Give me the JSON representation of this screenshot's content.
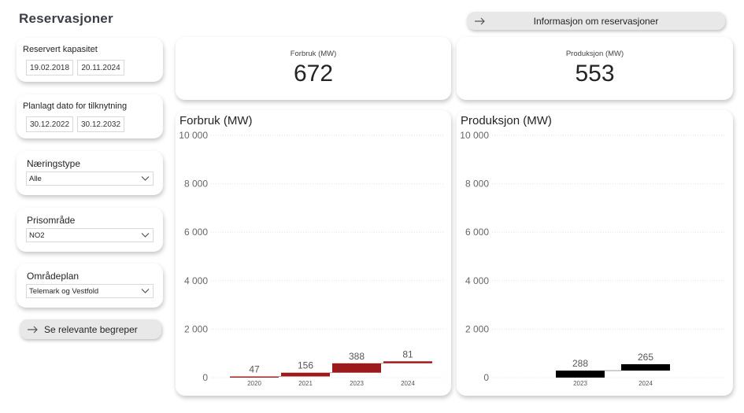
{
  "page": {
    "title": "Reservasjoner"
  },
  "buttons": {
    "info_label": "Informasjon om reservasjoner",
    "terms_label": "Se relevante begreper"
  },
  "filters": {
    "reserved_capacity": {
      "label": "Reservert kapasitet",
      "start": "19.02.2018",
      "end": "20.11.2024"
    },
    "planned_connection": {
      "label": "Planlagt dato for tilknytning",
      "start": "30.12.2022",
      "end": "30.12.2032"
    },
    "industry_type": {
      "label": "Næringstype",
      "value": "Alle"
    },
    "price_area": {
      "label": "Prisområde",
      "value": "NO2"
    },
    "area_plan": {
      "label": "Områdeplan",
      "value": "Telemark og Vestfold"
    }
  },
  "kpis": {
    "consumption": {
      "label": "Forbruk (MW)",
      "value": "672"
    },
    "production": {
      "label": "Produksjon (MW)",
      "value": "553"
    }
  },
  "colors": {
    "consumption_bar": "#9c1a1c",
    "production_bar": "#000000",
    "connector": "#a0a0a0"
  },
  "chart_data": [
    {
      "type": "bar",
      "subtype": "waterfall",
      "title": "Forbruk (MW)",
      "categories": [
        "2020",
        "2021",
        "2023",
        "2024"
      ],
      "values": [
        47,
        156,
        388,
        81
      ],
      "value_labels": [
        "47",
        "156",
        "388",
        "81"
      ],
      "ylim": [
        0,
        10000
      ],
      "yticks": [
        0,
        2000,
        4000,
        6000,
        8000,
        10000
      ],
      "ytick_labels": [
        "0",
        "2 000",
        "4 000",
        "6 000",
        "8 000",
        "10 000"
      ],
      "grid": true
    },
    {
      "type": "bar",
      "subtype": "waterfall",
      "title": "Produksjon (MW)",
      "categories": [
        "2023",
        "2024"
      ],
      "values": [
        288,
        265
      ],
      "value_labels": [
        "288",
        "265"
      ],
      "ylim": [
        0,
        10000
      ],
      "yticks": [
        0,
        2000,
        4000,
        6000,
        8000,
        10000
      ],
      "ytick_labels": [
        "0",
        "2 000",
        "4 000",
        "6 000",
        "8 000",
        "10 000"
      ],
      "grid": true
    }
  ]
}
